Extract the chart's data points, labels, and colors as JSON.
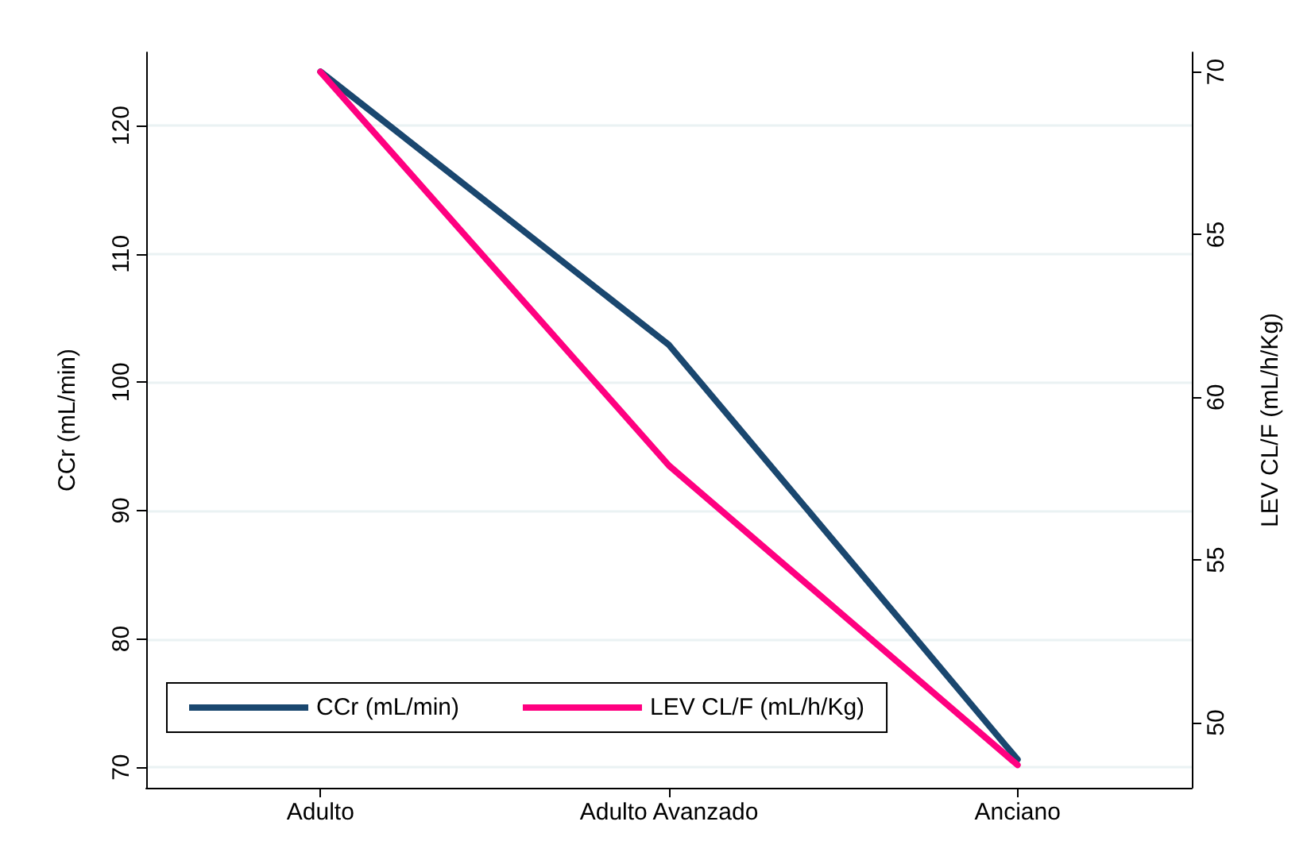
{
  "chart_data": {
    "type": "line",
    "categories": [
      "Adulto",
      "Adulto Avanzado",
      "Anciano"
    ],
    "ylabel": "CCr (mL/min)",
    "y2label": "LEV CL/F (mL/h/Kg)",
    "series": [
      {
        "name": "CCr (mL/min)",
        "color": "#1a476f",
        "values": [
          124.2,
          102.9,
          70.6
        ]
      },
      {
        "name": "LEV CL/F (mL/h/Kg)",
        "color": "#ff0080",
        "values": [
          70.0,
          57.9,
          48.7
        ],
        "axis": "y2"
      }
    ],
    "ylim": [
      68.4,
      125.7
    ],
    "yticks": [
      70,
      80,
      90,
      100,
      110,
      120
    ],
    "y2lim": [
      48.0,
      70.6
    ],
    "y2ticks": [
      50,
      55,
      60,
      65,
      70
    ],
    "grid": "y",
    "legend": "bottom left",
    "marker": "none",
    "line_style": "solid"
  }
}
